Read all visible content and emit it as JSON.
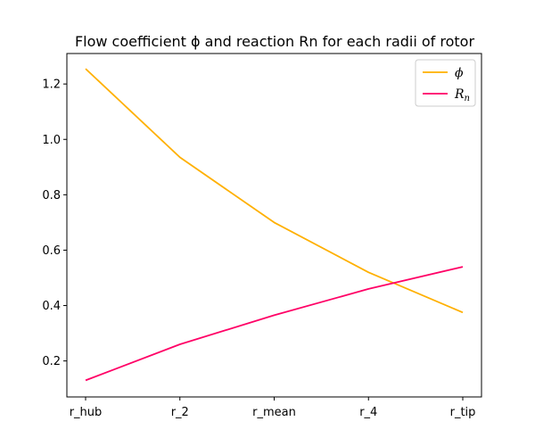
{
  "chart_data": {
    "type": "line",
    "title": "Flow coefficient ϕ and reaction Rn for each radii of rotor",
    "xlabel": "",
    "ylabel": "",
    "categories": [
      "r_hub",
      "r_2",
      "r_mean",
      "r_4",
      "r_tip"
    ],
    "ylim": [
      0.07,
      1.31
    ],
    "yticks": [
      0.2,
      0.4,
      0.6,
      0.8,
      1.0,
      1.2
    ],
    "ytick_labels": [
      "0.2",
      "0.4",
      "0.6",
      "0.8",
      "1.0",
      "1.2"
    ],
    "grid": false,
    "legend_position": "top-right",
    "series": [
      {
        "name": "ϕ",
        "color": "#ffb000",
        "values": [
          1.255,
          0.935,
          0.7,
          0.52,
          0.375
        ]
      },
      {
        "name": "R",
        "name_subscript": "n",
        "color": "#ff0066",
        "values": [
          0.13,
          0.26,
          0.365,
          0.46,
          0.54
        ]
      }
    ]
  }
}
